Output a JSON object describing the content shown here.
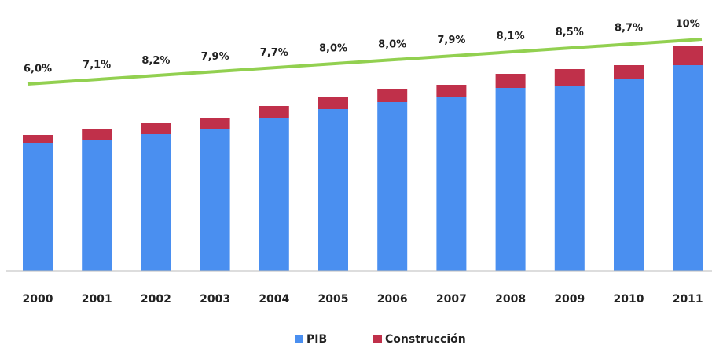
{
  "chart_data": {
    "type": "stacked_bar",
    "categories": [
      "2000",
      "2001",
      "2002",
      "2003",
      "2004",
      "2005",
      "2006",
      "2007",
      "2008",
      "2009",
      "2010",
      "2011"
    ],
    "series": [
      {
        "name": "PIB",
        "color": "#4a8ff0",
        "values": [
          163,
          167,
          175,
          181,
          195,
          206,
          215,
          221,
          233,
          236,
          244,
          262
        ]
      },
      {
        "name": "Construcción",
        "color": "#c0304a",
        "values": [
          10,
          14,
          14,
          14,
          15,
          16,
          17,
          16,
          18,
          21,
          18,
          25
        ]
      }
    ],
    "share": {
      "color": "#92d050",
      "values": [
        6.0,
        7.1,
        8.2,
        7.9,
        7.7,
        8.0,
        8.0,
        7.9,
        8.1,
        8.5,
        8.7,
        10
      ],
      "value_labels": [
        "6,0%",
        "7,1%",
        "8,2%",
        "7,9%",
        "7,7%",
        "8,0%",
        "8,0%",
        "7,9%",
        "8,1%",
        "8,5%",
        "8,7%",
        "10%"
      ]
    },
    "ylim": [
      0,
      290
    ]
  }
}
